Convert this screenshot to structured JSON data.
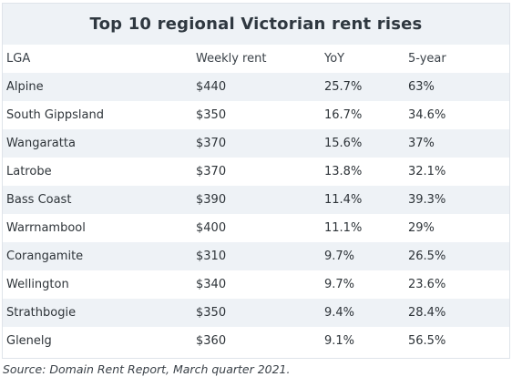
{
  "title": "Top 10 regional Victorian rent rises",
  "columns": [
    "LGA",
    "Weekly rent",
    "YoY",
    "5-year"
  ],
  "rows": [
    [
      "Alpine",
      "$440",
      "25.7%",
      "63%"
    ],
    [
      "South Gippsland",
      "$350",
      "16.7%",
      "34.6%"
    ],
    [
      "Wangaratta",
      "$370",
      "15.6%",
      "37%"
    ],
    [
      "Latrobe",
      "$370",
      "13.8%",
      "32.1%"
    ],
    [
      "Bass Coast",
      "$390",
      "11.4%",
      "39.3%"
    ],
    [
      "Warrnambool",
      "$400",
      "11.1%",
      "29%"
    ],
    [
      "Corangamite",
      "$310",
      "9.7%",
      "26.5%"
    ],
    [
      "Wellington",
      "$340",
      "9.7%",
      "23.6%"
    ],
    [
      "Strathbogie",
      "$350",
      "9.4%",
      "28.4%"
    ],
    [
      "Glenelg",
      "$360",
      "9.1%",
      "56.5%"
    ]
  ],
  "source": "Source: Domain Rent Report, March quarter 2021.",
  "colors": {
    "stripe": "#eef2f6",
    "text": "#2e3439"
  }
}
